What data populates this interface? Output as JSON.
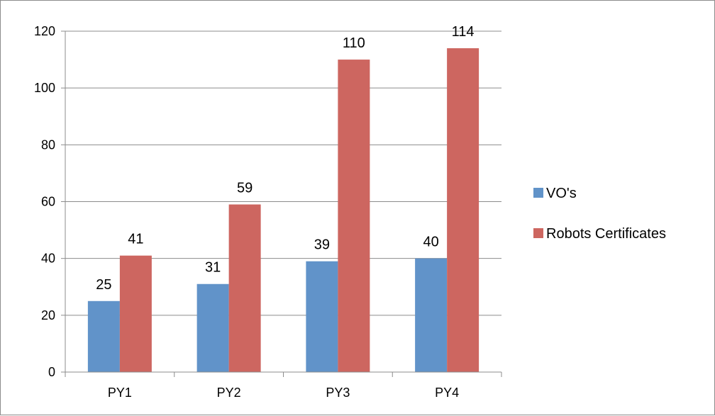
{
  "chart_data": {
    "type": "bar",
    "categories": [
      "PY1",
      "PY2",
      "PY3",
      "PY4"
    ],
    "series": [
      {
        "name": "VO's",
        "values": [
          25,
          31,
          39,
          40
        ],
        "color": "#6193c9"
      },
      {
        "name": "Robots Certificates",
        "values": [
          41,
          59,
          110,
          114
        ],
        "color": "#cd6660"
      }
    ],
    "ylim": [
      0,
      120
    ],
    "yticks": [
      0,
      20,
      40,
      60,
      80,
      100,
      120
    ],
    "grid": true,
    "legend_position": "right",
    "data_labels": true
  }
}
